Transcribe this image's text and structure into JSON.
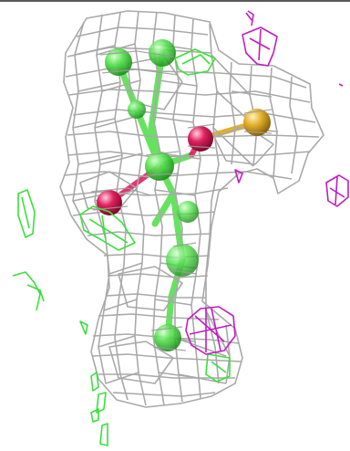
{
  "viewer": {
    "background_color": "#ffffff",
    "top_rule_color": "#222222"
  },
  "density_colors": {
    "main_mesh": "#a9a9a9",
    "positive_difference": "#39e03a",
    "negative_difference": "#c21cc4"
  },
  "atom_colors": {
    "carbon": "#4ee04a",
    "oxygen": "#e0205f",
    "sulfur": "#e3b02a"
  }
}
